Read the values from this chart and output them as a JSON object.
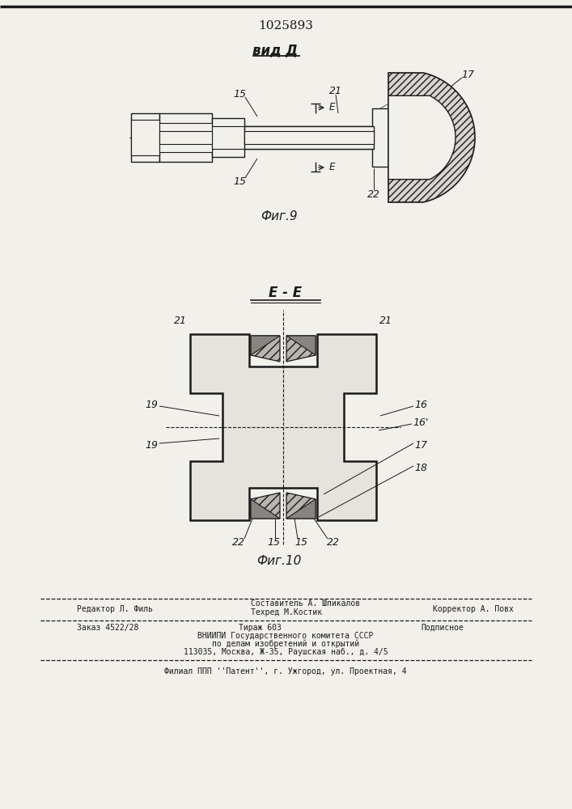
{
  "patent_number": "1025893",
  "fig9_label": "вид Д",
  "fig9_caption": "Фиг.9",
  "fig10_label": "Е - Е",
  "fig10_caption": "Фиг.10",
  "bg_color": "#f2f0eb",
  "line_color": "#1a1a1a",
  "footer_editor": "Редактор Л. Филь",
  "footer_composer": "Составитель А. Шпикалов",
  "footer_tech": "Техред М.Костик",
  "footer_corrector": "Корректор А. Повх",
  "footer_order": "Заказ 4522/28",
  "footer_tirazh": "Тираж 603",
  "footer_podpisnoe": "Подписное",
  "footer_vnipi": "ВНИИПИ Государственного комитета СССР",
  "footer_po": "по делам изобретений и открытий",
  "footer_addr": "113035, Москва, Ж-35, Раушская наб., д. 4/5",
  "footer_filial": "Филиал ППП ''Патент'', г. Ужгород, ул. Проектная, 4"
}
